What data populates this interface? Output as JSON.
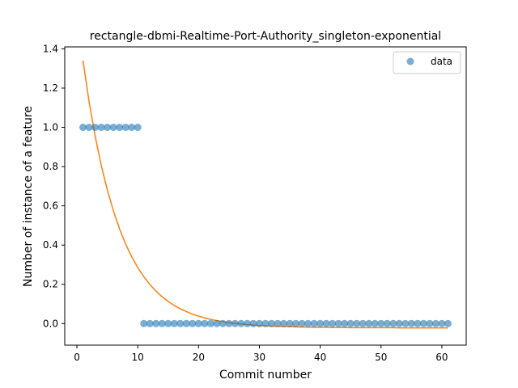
{
  "chart_data": {
    "type": "scatter",
    "title": "rectangle-dbmi-Realtime-Port-Authority_singleton-exponential",
    "xlabel": "Commit number",
    "ylabel": "Number of instance of a feature",
    "xlim": [
      -2,
      64
    ],
    "ylim": [
      -0.11,
      1.41
    ],
    "xticks": [
      0,
      10,
      20,
      30,
      40,
      50,
      60
    ],
    "yticks": [
      0.0,
      0.2,
      0.4,
      0.6,
      0.8,
      1.0,
      1.2,
      1.4
    ],
    "xtick_labels": [
      "0",
      "10",
      "20",
      "30",
      "40",
      "50",
      "60"
    ],
    "ytick_labels": [
      "0.0",
      "0.2",
      "0.4",
      "0.6",
      "0.8",
      "1.0",
      "1.2",
      "1.4"
    ],
    "legend_position": "top-right",
    "legend": [
      "data"
    ],
    "series": [
      {
        "name": "data",
        "kind": "scatter",
        "color": "#1f77b4",
        "x": [
          1,
          2,
          3,
          4,
          5,
          6,
          7,
          8,
          9,
          10,
          11,
          12,
          13,
          14,
          15,
          16,
          17,
          18,
          19,
          20,
          21,
          22,
          23,
          24,
          25,
          26,
          27,
          28,
          29,
          30,
          31,
          32,
          33,
          34,
          35,
          36,
          37,
          38,
          39,
          40,
          41,
          42,
          43,
          44,
          45,
          46,
          47,
          48,
          49,
          50,
          51,
          52,
          53,
          54,
          55,
          56,
          57,
          58,
          59,
          60,
          61
        ],
        "y": [
          1,
          1,
          1,
          1,
          1,
          1,
          1,
          1,
          1,
          1,
          0,
          0,
          0,
          0,
          0,
          0,
          0,
          0,
          0,
          0,
          0,
          0,
          0,
          0,
          0,
          0,
          0,
          0,
          0,
          0,
          0,
          0,
          0,
          0,
          0,
          0,
          0,
          0,
          0,
          0,
          0,
          0,
          0,
          0,
          0,
          0,
          0,
          0,
          0,
          0,
          0,
          0,
          0,
          0,
          0,
          0,
          0,
          0,
          0,
          0,
          0
        ]
      },
      {
        "kind": "line",
        "color": "#ff7f0e",
        "x": [
          1,
          2,
          3,
          4,
          5,
          6,
          7,
          8,
          9,
          10,
          11,
          12,
          13,
          14,
          15,
          16,
          17,
          18,
          19,
          20,
          21,
          22,
          23,
          24,
          25,
          26,
          27,
          28,
          29,
          30,
          31,
          32,
          33,
          34,
          35,
          36,
          37,
          38,
          39,
          40,
          41,
          42,
          43,
          44,
          45,
          46,
          47,
          48,
          49,
          50,
          51,
          52,
          53,
          54,
          55,
          56,
          57,
          58,
          59,
          60,
          61
        ],
        "y": [
          1.34,
          1.131,
          0.955,
          0.806,
          0.681,
          0.574,
          0.483,
          0.406,
          0.341,
          0.286,
          0.239,
          0.199,
          0.165,
          0.137,
          0.113,
          0.092,
          0.075,
          0.061,
          0.048,
          0.038,
          0.029,
          0.021,
          0.015,
          0.01,
          0.005,
          0.001,
          -0.002,
          -0.005,
          -0.008,
          -0.01,
          -0.011,
          -0.013,
          -0.014,
          -0.015,
          -0.016,
          -0.017,
          -0.018,
          -0.018,
          -0.019,
          -0.019,
          -0.019,
          -0.02,
          -0.02,
          -0.02,
          -0.021,
          -0.021,
          -0.021,
          -0.021,
          -0.021,
          -0.021,
          -0.021,
          -0.021,
          -0.022,
          -0.022,
          -0.022,
          -0.022,
          -0.022,
          -0.022,
          -0.022,
          -0.022,
          -0.022
        ]
      }
    ]
  }
}
